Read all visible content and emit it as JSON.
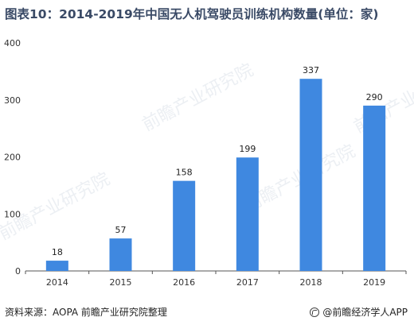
{
  "title": "图表10：2014-2019年中国无人机驾驶员训练机构数量(单位：家)",
  "footer": {
    "source": "资料来源：AOPA 前瞻产业研究院整理",
    "brand": "@前瞻经济学人APP"
  },
  "watermark": {
    "text": "前瞻产业研究院"
  },
  "colors": {
    "bar": "#3f88e0",
    "axis": "#555555",
    "title": "#3a4a66"
  },
  "chart_data": {
    "type": "bar",
    "categories": [
      "2014",
      "2015",
      "2016",
      "2017",
      "2018",
      "2019"
    ],
    "values": [
      18,
      57,
      158,
      199,
      337,
      290
    ],
    "title": "",
    "xlabel": "",
    "ylabel": "",
    "ylim": [
      0,
      400
    ],
    "yticks": [
      0,
      100,
      200,
      300,
      400
    ],
    "grid": false,
    "data_labels": true
  }
}
